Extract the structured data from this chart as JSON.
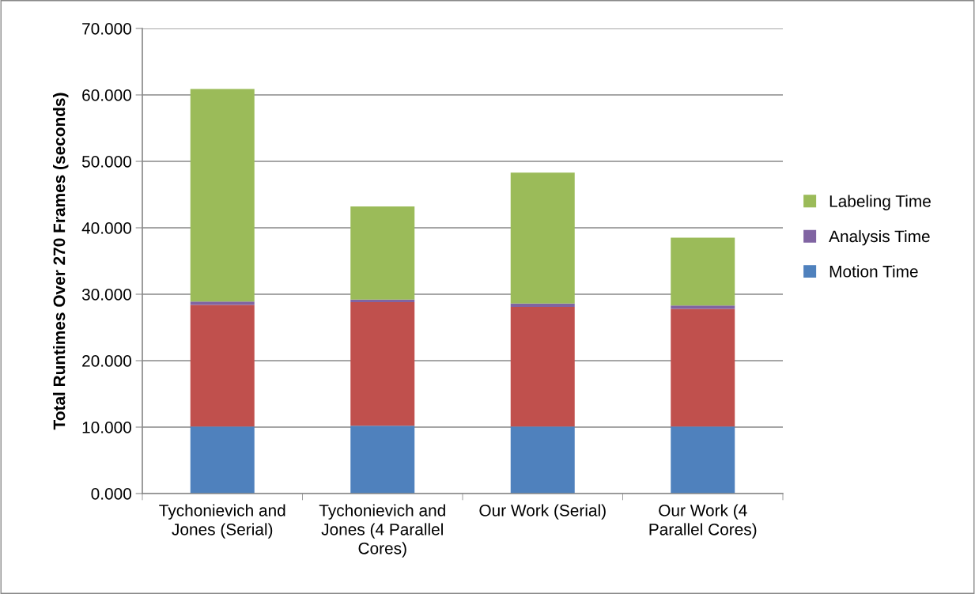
{
  "chart_data": {
    "type": "bar",
    "stacked": true,
    "ylabel": "Total Runtimes Over 270 Frames (seconds)",
    "categories": [
      "Tychonievich and Jones (Serial)",
      "Tychonievich and Jones (4 Parallel Cores)",
      "Our Work (Serial)",
      "Our Work (4 Parallel Cores)"
    ],
    "series": [
      {
        "name": "Motion Time",
        "color": "#4f81bd",
        "values": [
          10.1,
          10.2,
          10.1,
          10.1
        ]
      },
      {
        "color": "#c0504d",
        "values": [
          18.3,
          18.6,
          18.0,
          17.7
        ]
      },
      {
        "name": "Analysis Time",
        "color": "#8064a2",
        "values": [
          0.5,
          0.4,
          0.5,
          0.5
        ]
      },
      {
        "name": "Labeling Time",
        "color": "#9bbb59",
        "values": [
          32.0,
          14.0,
          19.7,
          10.2
        ]
      }
    ],
    "ylim": [
      0,
      70
    ],
    "yticks": [
      {
        "value": 0,
        "label": "0.000"
      },
      {
        "value": 10,
        "label": "10.000"
      },
      {
        "value": 20,
        "label": "20.000"
      },
      {
        "value": 30,
        "label": "30.000"
      },
      {
        "value": 40,
        "label": "40.000"
      },
      {
        "value": 50,
        "label": "50.000"
      },
      {
        "value": 60,
        "label": "60.000"
      },
      {
        "value": 70,
        "label": "70.000"
      }
    ],
    "grid": "y",
    "legend": "right"
  }
}
